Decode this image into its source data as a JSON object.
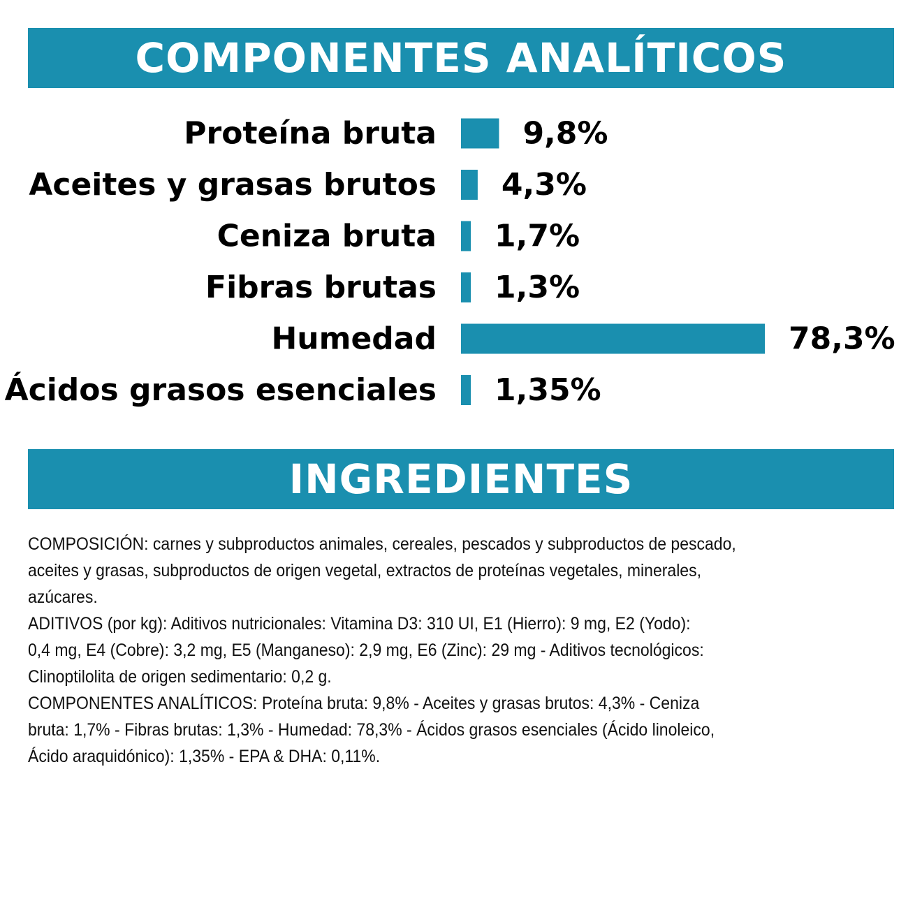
{
  "headers": {
    "analiticos": "COMPONENTES ANALÍTICOS",
    "ingredientes": "INGREDIENTES"
  },
  "colors": {
    "accent": "#1a8faf",
    "text": "#000000"
  },
  "chart_data": {
    "type": "bar",
    "orientation": "horizontal",
    "categories": [
      "Proteína bruta",
      "Aceites y grasas brutos",
      "Ceniza bruta",
      "Fibras brutas",
      "Humedad",
      "Ácidos grasos esenciales"
    ],
    "values": [
      9.8,
      4.3,
      1.7,
      1.3,
      78.3,
      1.35
    ],
    "value_labels": [
      "9,8%",
      "4,3%",
      "1,7%",
      "1,3%",
      "78,3%",
      "1,35%"
    ],
    "xlim": [
      0,
      78.3
    ],
    "grid": false,
    "legend": "none"
  },
  "ingredients": {
    "text": "COMPOSICIÓN: carnes y subproductos animales, cereales, pescados y subproductos de pescado,\naceites y grasas, subproductos de origen vegetal, extractos de proteínas vegetales, minerales,\nazúcares.\n ADITIVOS (por kg): Aditivos nutricionales: Vitamina D3: 310 UI, E1 (Hierro): 9 mg, E2 (Yodo):\n0,4 mg, E4 (Cobre): 3,2 mg, E5 (Manganeso): 2,9 mg, E6 (Zinc): 29 mg - Aditivos tecnológicos:\nClinoptilolita de origen sedimentario: 0,2 g.\n COMPONENTES ANALÍTICOS: Proteína bruta: 9,8% - Aceites y grasas brutos: 4,3% - Ceniza\nbruta: 1,7% - Fibras brutas: 1,3% - Humedad: 78,3% - Ácidos grasos esenciales (Ácido linoleico,\nÁcido araquidónico): 1,35% - EPA & DHA: 0,11%."
  }
}
